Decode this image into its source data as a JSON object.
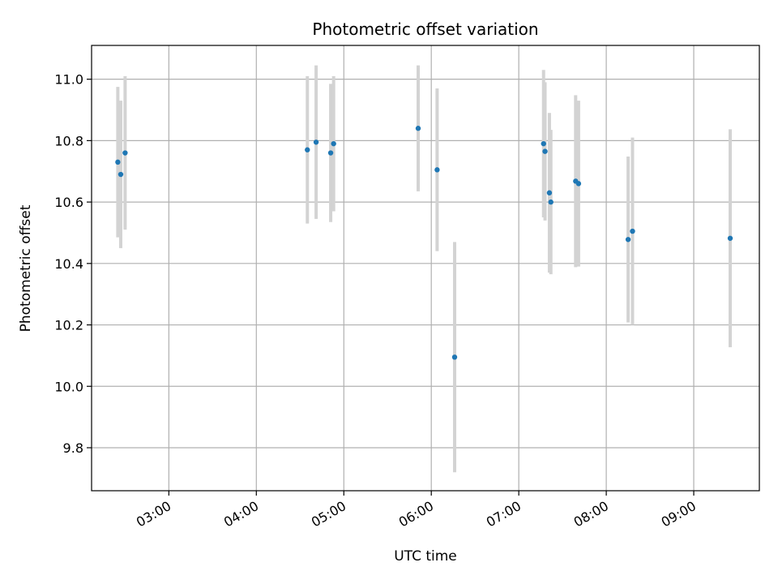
{
  "chart_data": {
    "type": "scatter",
    "title": "Photometric offset variation",
    "xlabel": "UTC time",
    "ylabel": "Photometric offset",
    "x_tick_labels": [
      "03:00",
      "04:00",
      "05:00",
      "06:00",
      "07:00",
      "08:00",
      "09:00"
    ],
    "x_tick_times": [
      "03:00",
      "04:00",
      "05:00",
      "06:00",
      "07:00",
      "08:00",
      "09:00"
    ],
    "y_ticks": [
      9.8,
      10.0,
      10.2,
      10.4,
      10.6,
      10.8,
      11.0
    ],
    "y_tick_labels": [
      "9.8",
      "10.0",
      "10.2",
      "10.4",
      "10.6",
      "10.8",
      "11.0"
    ],
    "xlim": [
      "02:07",
      "09:45"
    ],
    "ylim": [
      9.66,
      11.11
    ],
    "grid": true,
    "marker_color": "#1f77b4",
    "errorbar_color": "#d3d3d3",
    "points": [
      {
        "x": "02:25",
        "y": 10.73,
        "err": 0.245
      },
      {
        "x": "02:27",
        "y": 10.69,
        "err": 0.24
      },
      {
        "x": "02:30",
        "y": 10.76,
        "err": 0.25
      },
      {
        "x": "04:35",
        "y": 10.77,
        "err": 0.24
      },
      {
        "x": "04:41",
        "y": 10.795,
        "err": 0.25
      },
      {
        "x": "04:51",
        "y": 10.76,
        "err": 0.225
      },
      {
        "x": "04:53",
        "y": 10.79,
        "err": 0.22
      },
      {
        "x": "05:51",
        "y": 10.84,
        "err": 0.205
      },
      {
        "x": "06:04",
        "y": 10.705,
        "err": 0.265
      },
      {
        "x": "06:16",
        "y": 10.095,
        "err": 0.375
      },
      {
        "x": "07:17",
        "y": 10.79,
        "err": 0.24
      },
      {
        "x": "07:18",
        "y": 10.765,
        "err": 0.225
      },
      {
        "x": "07:21",
        "y": 10.63,
        "err": 0.26
      },
      {
        "x": "07:22",
        "y": 10.6,
        "err": 0.235
      },
      {
        "x": "07:39",
        "y": 10.668,
        "err": 0.28
      },
      {
        "x": "07:41",
        "y": 10.66,
        "err": 0.27
      },
      {
        "x": "08:15",
        "y": 10.478,
        "err": 0.27
      },
      {
        "x": "08:18",
        "y": 10.505,
        "err": 0.305
      },
      {
        "x": "09:25",
        "y": 10.482,
        "err": 0.355
      }
    ]
  }
}
